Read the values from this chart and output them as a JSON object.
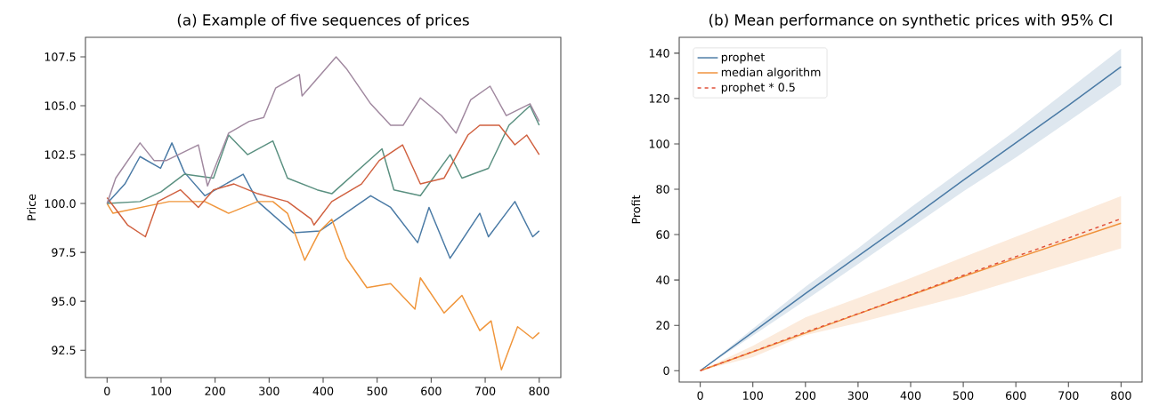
{
  "chart_data": [
    {
      "type": "line",
      "title": "(a) Example of five sequences of prices",
      "ylabel": "Price",
      "xlim": [
        -40,
        840
      ],
      "ylim": [
        91.1,
        108.5
      ],
      "xticks": [
        0,
        100,
        200,
        300,
        400,
        500,
        600,
        700,
        800
      ],
      "yticks": [
        {
          "value": 92.5,
          "label": "92.5"
        },
        {
          "value": 95,
          "label": "95.0"
        },
        {
          "value": 97.5,
          "label": "97.5"
        },
        {
          "value": 100,
          "label": "100.0"
        },
        {
          "value": 102.5,
          "label": "102.5"
        },
        {
          "value": 105,
          "label": "105.0"
        },
        {
          "value": 107.5,
          "label": "107.5"
        }
      ],
      "series": [
        {
          "color": "#4a7aa5",
          "x": [
            0,
            33,
            61,
            99,
            120,
            143,
            181,
            252,
            279,
            345,
            394,
            488,
            525,
            575,
            596,
            635,
            690,
            706,
            755,
            788,
            800
          ],
          "values": [
            100,
            101.0,
            102.4,
            101.8,
            103.1,
            101.6,
            100.4,
            101.5,
            100.1,
            98.5,
            98.6,
            100.4,
            99.8,
            98.0,
            99.8,
            97.2,
            99.5,
            98.3,
            100.1,
            98.3,
            98.6
          ]
        },
        {
          "color": "#f0953a",
          "x": [
            0,
            11,
            115,
            181,
            225,
            279,
            307,
            334,
            366,
            394,
            416,
            443,
            481,
            525,
            570,
            580,
            624,
            657,
            690,
            711,
            730,
            760,
            788,
            800
          ],
          "values": [
            100,
            99.5,
            100.1,
            100.1,
            99.5,
            100.1,
            100.1,
            99.5,
            97.1,
            98.6,
            99.2,
            97.2,
            95.7,
            95.9,
            94.6,
            96.2,
            94.4,
            95.3,
            93.5,
            94.0,
            91.5,
            93.7,
            93.1,
            93.4
          ]
        },
        {
          "color": "#5a9080",
          "x": [
            0,
            61,
            100,
            143,
            197,
            225,
            260,
            307,
            334,
            389,
            416,
            509,
            531,
            580,
            635,
            657,
            706,
            744,
            783,
            800
          ],
          "values": [
            100,
            100.1,
            100.6,
            101.5,
            101.3,
            103.5,
            102.5,
            103.2,
            101.3,
            100.7,
            100.5,
            102.8,
            100.7,
            100.4,
            102.5,
            101.3,
            101.8,
            104.0,
            105.0,
            104.0
          ]
        },
        {
          "color": "#d0603f",
          "x": [
            0,
            38,
            71,
            94,
            136,
            169,
            197,
            235,
            279,
            334,
            378,
            383,
            416,
            471,
            504,
            547,
            580,
            624,
            668,
            690,
            726,
            755,
            777,
            800
          ],
          "values": [
            100.3,
            98.9,
            98.3,
            100.1,
            100.7,
            99.8,
            100.7,
            101.0,
            100.5,
            100.1,
            99.2,
            98.9,
            100.1,
            101.0,
            102.2,
            103.0,
            101.0,
            101.3,
            103.5,
            104.0,
            104.0,
            103.0,
            103.5,
            102.5
          ]
        },
        {
          "color": "#a0889f",
          "x": [
            0,
            16,
            61,
            87,
            110,
            169,
            186,
            225,
            263,
            290,
            312,
            356,
            361,
            424,
            443,
            488,
            525,
            548,
            580,
            619,
            646,
            673,
            709,
            739,
            783,
            800
          ],
          "values": [
            100,
            101.3,
            103.1,
            102.2,
            102.2,
            103.0,
            100.9,
            103.6,
            104.2,
            104.4,
            105.9,
            106.6,
            105.5,
            107.5,
            106.9,
            105.1,
            104.0,
            104.0,
            105.4,
            104.5,
            103.6,
            105.3,
            106.0,
            104.5,
            105.1,
            104.2
          ]
        }
      ]
    },
    {
      "type": "line",
      "title": "(b) Mean performance on synthetic prices with 95% CI",
      "ylabel": "Profit",
      "xlim": [
        -40,
        840
      ],
      "ylim": [
        -5,
        147
      ],
      "xticks": [
        0,
        100,
        200,
        300,
        400,
        500,
        600,
        700,
        800
      ],
      "yticks": [
        0,
        20,
        40,
        60,
        80,
        100,
        120,
        140
      ],
      "legend": "top left",
      "x": [
        0,
        100,
        200,
        300,
        400,
        500,
        600,
        700,
        800
      ],
      "series": [
        {
          "name": "prophet",
          "color": "#4a7aa5",
          "values": [
            0,
            17,
            34,
            50.5,
            67,
            84,
            100.5,
            117,
            134
          ],
          "lower": [
            0,
            15.5,
            31,
            47,
            63,
            79,
            94,
            110,
            126
          ],
          "upper": [
            0,
            18.5,
            37,
            54,
            72,
            89,
            106,
            124,
            142
          ]
        },
        {
          "name": "median algorithm",
          "color": "#f0913a",
          "values": [
            0,
            8.3,
            16.6,
            25,
            33.3,
            41.5,
            49.5,
            57.3,
            65
          ],
          "lower": [
            0,
            6,
            15.7,
            21,
            27,
            33,
            40,
            47,
            54
          ],
          "upper": [
            0,
            11,
            23.5,
            32,
            40.8,
            50,
            59,
            68,
            77
          ]
        },
        {
          "name": "prophet * 0.5",
          "color": "#e0503a",
          "line_style": "dashed",
          "values": [
            0,
            8.4,
            17,
            25.1,
            33.5,
            42,
            50.3,
            58.5,
            67
          ]
        }
      ]
    }
  ]
}
